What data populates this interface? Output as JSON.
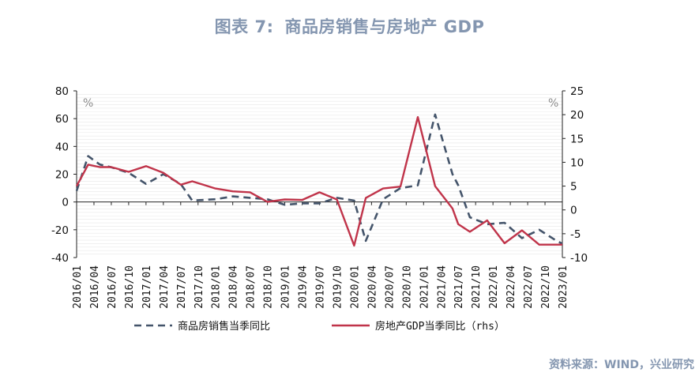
{
  "page": {
    "title_num": "图表 7:",
    "title_text": "商品房销售与房地产 GDP",
    "source": "资料来源：WIND，兴业研究"
  },
  "chart_data": {
    "type": "line",
    "title": "商品房销售与房地产 GDP",
    "x": [
      "2016/01",
      "2016/04",
      "2016/07",
      "2016/10",
      "2017/01",
      "2017/04",
      "2017/07",
      "2017/10",
      "2018/01",
      "2018/04",
      "2018/07",
      "2018/10",
      "2019/01",
      "2019/04",
      "2019/07",
      "2019/10",
      "2020/01",
      "2020/04",
      "2020/07",
      "2020/10",
      "2021/01",
      "2021/04",
      "2021/07",
      "2021/10",
      "2022/01",
      "2022/04",
      "2022/07",
      "2022/10",
      "2023/01"
    ],
    "y_left": {
      "unit": "%",
      "ylim": [
        -40,
        80
      ],
      "ticks": [
        "80",
        "60",
        "40",
        "20",
        "0",
        "-20",
        "-40"
      ]
    },
    "y_right": {
      "unit": "%",
      "ylim": [
        -10,
        25
      ],
      "ticks": [
        "25",
        "20",
        "15",
        "10",
        "5",
        "0",
        "-5",
        "-10"
      ]
    },
    "grid": true,
    "legend_position": "bottom",
    "series": [
      {
        "name": "商品房销售当季同比",
        "axis": "left",
        "style": "dashed",
        "color": "#44546a",
        "x": [
          "2016/01",
          "2016/03",
          "2016/05",
          "2016/07",
          "2016/10",
          "2017/01",
          "2017/04",
          "2017/07",
          "2017/09",
          "2018/01",
          "2018/04",
          "2018/07",
          "2018/10",
          "2019/01",
          "2019/04",
          "2019/07",
          "2019/10",
          "2020/01",
          "2020/03",
          "2020/06",
          "2020/09",
          "2020/12",
          "2021/03",
          "2021/06",
          "2021/07",
          "2021/09",
          "2021/12",
          "2022/03",
          "2022/06",
          "2022/09",
          "2022/12",
          "2023/01"
        ],
        "values": [
          8,
          33,
          27,
          25,
          21,
          13,
          20,
          13,
          1,
          2,
          4,
          3,
          2,
          -2,
          -1,
          -1,
          3,
          1,
          -28,
          2,
          10,
          12,
          63,
          20,
          12,
          -11,
          -16,
          -15,
          -26,
          -20,
          -28,
          -30
        ]
      },
      {
        "name": "房地产GDP当季同比（rhs）",
        "axis": "right",
        "style": "solid",
        "color": "#c0344a",
        "x": [
          "2016/01",
          "2016/03",
          "2016/05",
          "2016/07",
          "2016/10",
          "2017/01",
          "2017/04",
          "2017/07",
          "2017/09",
          "2018/01",
          "2018/04",
          "2018/07",
          "2018/10",
          "2019/01",
          "2019/04",
          "2019/07",
          "2019/10",
          "2020/01",
          "2020/03",
          "2020/06",
          "2020/09",
          "2020/12",
          "2021/03",
          "2021/06",
          "2021/07",
          "2021/09",
          "2021/12",
          "2022/03",
          "2022/06",
          "2022/09",
          "2022/12",
          "2023/01"
        ],
        "values": [
          5,
          9.5,
          9.0,
          9.0,
          8.0,
          9.2,
          7.8,
          5.3,
          6.0,
          4.5,
          3.9,
          3.7,
          1.7,
          2.2,
          2.1,
          3.7,
          2.2,
          -7.5,
          2.5,
          4.5,
          4.9,
          19.5,
          5.0,
          0.3,
          -3.0,
          -4.6,
          -2.2,
          -7.0,
          -4.3,
          -7.3,
          -7.3,
          -7.3
        ]
      }
    ]
  },
  "legend": {
    "items": [
      {
        "label": "商品房销售当季同比"
      },
      {
        "label": "房地产GDP当季同比（rhs）"
      }
    ]
  }
}
